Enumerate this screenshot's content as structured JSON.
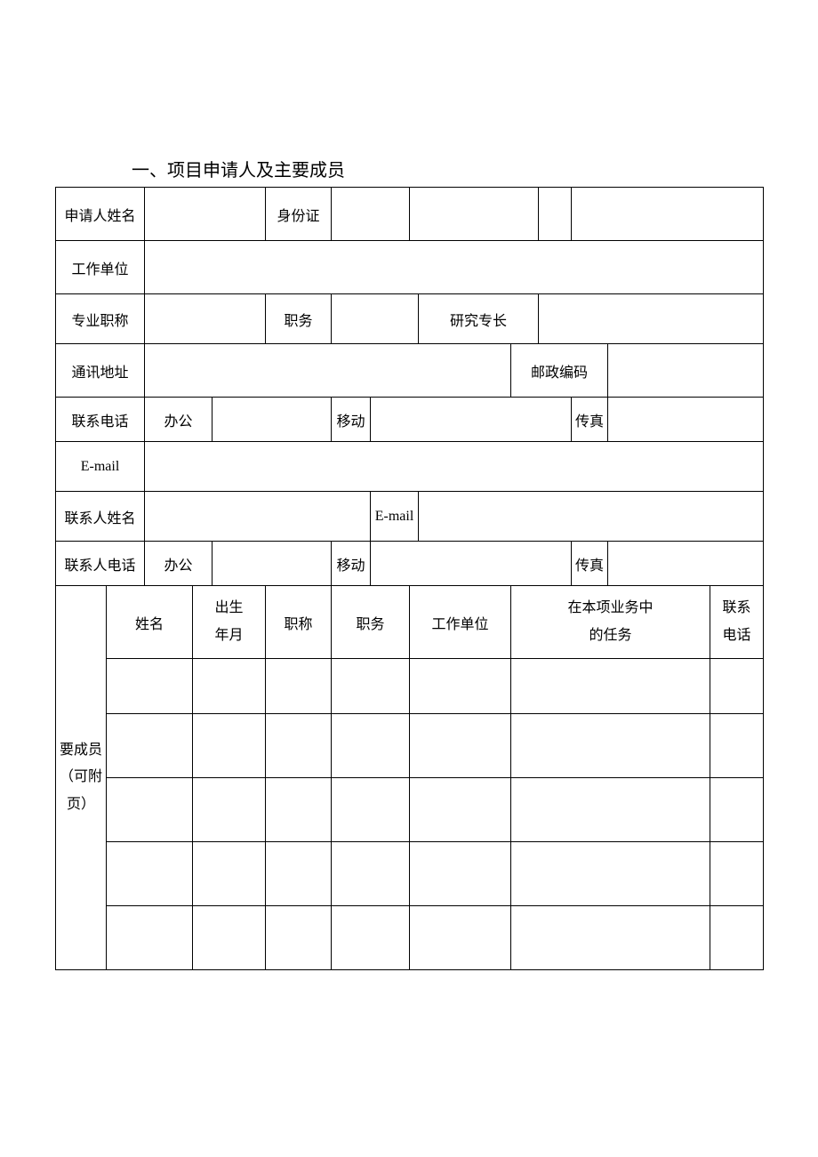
{
  "title": "一、项目申请人及主要成员",
  "labels": {
    "applicant_name": "申请人姓名",
    "id_card": "身份证",
    "work_unit": "工作单位",
    "pro_title": "专业职称",
    "position": "职务",
    "specialty": "研究专长",
    "address": "通讯地址",
    "postcode": "邮政编码",
    "contact_phone": "联系电话",
    "office": "办公",
    "mobile": "移动",
    "fax": "传真",
    "email": "E-mail",
    "contact_name": "联系人姓名",
    "contact_email": "E-mail",
    "contact_person_phone": "联系人电话",
    "members_label": "要成员\n（可附\n页）",
    "col_name": "姓名",
    "col_birth": "出生\n年月",
    "col_title": "职称",
    "col_position": "职务",
    "col_unit": "工作单位",
    "col_task": "在本项业务中\n的任务",
    "col_phone": "联系\n电话"
  },
  "values": {
    "applicant_name": "",
    "id1": "",
    "id2": "",
    "id3": "",
    "id4": "",
    "work_unit": "",
    "pro_title": "",
    "position": "",
    "specialty": "",
    "address": "",
    "postcode": "",
    "phone_office": "",
    "phone_mobile": "",
    "phone_fax": "",
    "email": "",
    "contact_name": "",
    "contact_email": "",
    "contact_office": "",
    "contact_mobile": "",
    "contact_fax": ""
  },
  "style": {
    "border_color": "#000000",
    "background": "#ffffff",
    "text_color": "#000000",
    "font_family": "SimSun",
    "title_fontsize": 20,
    "cell_fontsize": 16
  }
}
